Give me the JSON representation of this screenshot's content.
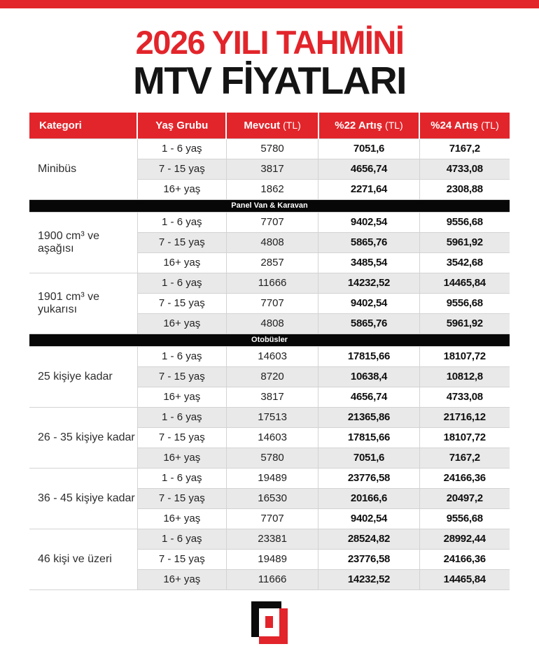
{
  "title": {
    "line1": "2026 YILI TAHMİNİ",
    "line2": "MTV FİYATLARI"
  },
  "colors": {
    "accent_red": "#e2252b",
    "banner_black": "#070707",
    "row_alt_gray": "#e9e9e9",
    "header_text": "#ffffff",
    "logo_black": "#0b0b0b",
    "logo_red": "#e2242b"
  },
  "ui": {
    "headers": [
      {
        "id": "kategori",
        "label": "Kategori",
        "suffix": ""
      },
      {
        "id": "yas-grubu",
        "label": "Yaş Grubu",
        "suffix": ""
      },
      {
        "id": "mevcut",
        "label": "Mevcut",
        "suffix": "(TL)"
      },
      {
        "id": "artis-22",
        "label": "%22 Artış",
        "suffix": "(TL)"
      },
      {
        "id": "artis-24",
        "label": "%24 Artış",
        "suffix": "(TL)"
      }
    ],
    "logo_name": "hurriyet-h-logo"
  },
  "chart_data": {
    "type": "table",
    "title": "2026 Yılı Tahmini MTV Fiyatları",
    "columns": [
      "Kategori",
      "Yaş Grubu",
      "Mevcut (TL)",
      "%22 Artış (TL)",
      "%24 Artış (TL)"
    ],
    "sections": [
      {
        "banner": null,
        "groups": [
          {
            "category": "Minibüs",
            "rows": [
              [
                "1 - 6 yaş",
                "5780",
                "7051,6",
                "7167,2"
              ],
              [
                "7 - 15 yaş",
                "3817",
                "4656,74",
                "4733,08"
              ],
              [
                "16+ yaş",
                "1862",
                "2271,64",
                "2308,88"
              ]
            ]
          }
        ]
      },
      {
        "banner": "Panel Van & Karavan",
        "groups": [
          {
            "category": "1900 cm³ ve aşağısı",
            "rows": [
              [
                "1 - 6 yaş",
                "7707",
                "9402,54",
                "9556,68"
              ],
              [
                "7 - 15 yaş",
                "4808",
                "5865,76",
                "5961,92"
              ],
              [
                "16+ yaş",
                "2857",
                "3485,54",
                "3542,68"
              ]
            ]
          },
          {
            "category": "1901 cm³ ve yukarısı",
            "rows": [
              [
                "1 - 6 yaş",
                "11666",
                "14232,52",
                "14465,84"
              ],
              [
                "7 - 15 yaş",
                "7707",
                "9402,54",
                "9556,68"
              ],
              [
                "16+ yaş",
                "4808",
                "5865,76",
                "5961,92"
              ]
            ]
          }
        ]
      },
      {
        "banner": "Otobüsler",
        "groups": [
          {
            "category": "25 kişiye kadar",
            "rows": [
              [
                "1 - 6 yaş",
                "14603",
                "17815,66",
                "18107,72"
              ],
              [
                "7 - 15 yaş",
                "8720",
                "10638,4",
                "10812,8"
              ],
              [
                "16+ yaş",
                "3817",
                "4656,74",
                "4733,08"
              ]
            ]
          },
          {
            "category": "26 - 35 kişiye kadar",
            "rows": [
              [
                "1 - 6 yaş",
                "17513",
                "21365,86",
                "21716,12"
              ],
              [
                "7 - 15 yaş",
                "14603",
                "17815,66",
                "18107,72"
              ],
              [
                "16+ yaş",
                "5780",
                "7051,6",
                "7167,2"
              ]
            ]
          },
          {
            "category": "36 - 45 kişiye kadar",
            "rows": [
              [
                "1 - 6 yaş",
                "19489",
                "23776,58",
                "24166,36"
              ],
              [
                "7 - 15 yaş",
                "16530",
                "20166,6",
                "20497,2"
              ],
              [
                "16+ yaş",
                "7707",
                "9402,54",
                "9556,68"
              ]
            ]
          },
          {
            "category": "46 kişi ve üzeri",
            "rows": [
              [
                "1 - 6 yaş",
                "23381",
                "28524,82",
                "28992,44"
              ],
              [
                "7 - 15 yaş",
                "19489",
                "23776,58",
                "24166,36"
              ],
              [
                "16+ yaş",
                "11666",
                "14232,52",
                "14465,84"
              ]
            ]
          }
        ]
      }
    ]
  }
}
